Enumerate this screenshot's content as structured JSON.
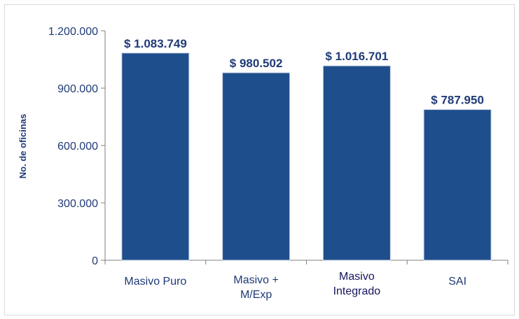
{
  "chart_data": {
    "type": "bar",
    "title": "",
    "xlabel": "",
    "ylabel": "No. de oficinas",
    "ylim": [
      0,
      1200000
    ],
    "yticks": [
      0,
      300000,
      600000,
      900000,
      1200000
    ],
    "ytick_labels": [
      "0",
      "300.000",
      "600.000",
      "900.000",
      "1.200.000"
    ],
    "categories": [
      [
        "Masivo Puro"
      ],
      [
        "Masivo +",
        "M/Exp"
      ],
      [
        "Masivo",
        "Integrado"
      ],
      [
        "SAI"
      ]
    ],
    "values": [
      1083749,
      980502,
      1016701,
      787950
    ],
    "data_labels": [
      "$ 1.083.749",
      "$ 980.502",
      "$ 1.016.701",
      "$ 787.950"
    ],
    "bar_color": "#1f4e8c",
    "label_color": "#1f3a77",
    "grid": false,
    "legend": "none"
  }
}
